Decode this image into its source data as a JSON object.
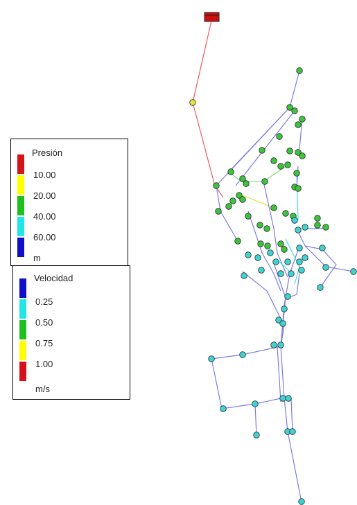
{
  "legend_pressure": {
    "title": "Presión",
    "labels": [
      "10.00",
      "20.00",
      "40.00",
      "60.00"
    ],
    "unit": "m",
    "colors": [
      "#d4141a",
      "#ffff00",
      "#1fbf1f",
      "#22e6e6",
      "#1010c8"
    ]
  },
  "legend_velocity": {
    "title": "Velocidad",
    "labels": [
      "0.25",
      "0.50",
      "0.75",
      "1.00"
    ],
    "unit": "m/s",
    "colors": [
      "#1010c8",
      "#22e6e6",
      "#1fbf1f",
      "#ffff00",
      "#d4141a"
    ]
  },
  "colors": {
    "reservoir": "#cc1010",
    "pipe_red": "#f05a5a",
    "pipe_blue": "#7b7be6",
    "pipe_cyan": "#3fe0e0",
    "pipe_green": "#7ee07e",
    "pipe_yellow": "#e6e63c",
    "node_green": "#3cc43c",
    "node_cyan": "#3ed4d4",
    "node_yellow": "#e4e43a"
  }
}
